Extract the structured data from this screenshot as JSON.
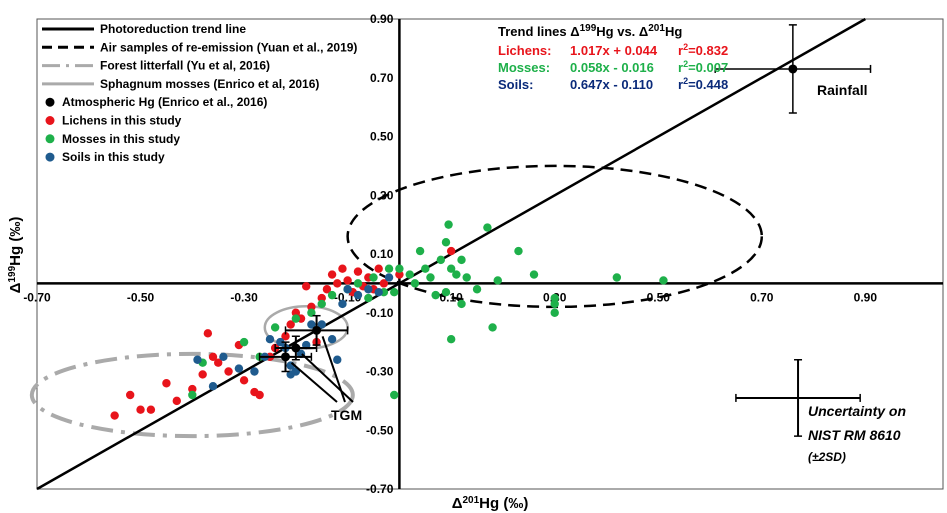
{
  "chart_data": {
    "type": "scatter",
    "xlabel": "Δ201Hg (‰)",
    "ylabel": "Δ199Hg (‰)",
    "xlim": [
      -0.7,
      1.05
    ],
    "ylim": [
      -0.7,
      0.9
    ],
    "x_ticks": [
      "-0.70",
      "-0.50",
      "-0.30",
      "-0.10",
      "0.10",
      "0.30",
      "0.50",
      "0.70",
      "0.90"
    ],
    "y_ticks": [
      "-0.70",
      "-0.50",
      "-0.30",
      "-0.10",
      "0.10",
      "0.30",
      "0.50",
      "0.70",
      "0.90"
    ],
    "legend": [
      {
        "label": "Photoreduction trend line",
        "style": "solid-black"
      },
      {
        "label": "Air samples of re-emission (Yuan et al., 2019)",
        "style": "dashed-black"
      },
      {
        "label": "Forest litterfall (Yu et al, 2016)",
        "style": "dashdot-gray"
      },
      {
        "label": "Sphagnum mosses (Enrico et al, 2016)",
        "style": "solid-gray"
      },
      {
        "label": "Atmospheric Hg (Enrico et al., 2016)",
        "style": "black-dot"
      },
      {
        "label": "Lichens in this study",
        "style": "red-dot"
      },
      {
        "label": "Mosses in this study",
        "style": "green-dot"
      },
      {
        "label": "Soils in this study",
        "style": "blue-dot"
      }
    ],
    "trend_box": {
      "title": "Trend lines Δ199Hg vs. Δ201Hg",
      "rows": [
        {
          "label": "Lichens:",
          "equation": "1.017x + 0.044",
          "r2": "r2=0.832",
          "color": "#e8141b"
        },
        {
          "label": "Mosses:",
          "equation": "0.058x - 0.016",
          "r2": "r2=0.007",
          "color": "#1eb04a"
        },
        {
          "label": "Soils:",
          "equation": "0.647x - 0.110",
          "r2": "r2=0.448",
          "color": "#0a2a7a"
        }
      ]
    },
    "annotations": {
      "rainfall": "Rainfall",
      "tgm": "TGM",
      "uncertainty_line1": "Uncertainty on",
      "uncertainty_line2": "NIST RM 8610",
      "uncertainty_line3": "(±2SD)"
    },
    "photoreduction_line": {
      "slope": 1.0,
      "intercept": 0.0
    },
    "air_reemission_ellipse": {
      "cx": 0.3,
      "cy": 0.16,
      "rx": 0.4,
      "ry": 0.4
    },
    "litterfall_ellipse": {
      "cx": -0.4,
      "cy": -0.38,
      "rx": 0.31,
      "ry": 0.14
    },
    "sphagnum_ellipse": {
      "cx": -0.18,
      "cy": -0.15,
      "rx": 0.08,
      "ry": 0.09
    },
    "rainfall_point": {
      "x": 0.76,
      "y": 0.73,
      "x_err": 0.15,
      "y_err": 0.15
    },
    "uncertainty_cross": {
      "x": 0.77,
      "y": -0.39,
      "x_err": 0.12,
      "y_err": 0.13
    },
    "atmospheric_points": [
      {
        "x": -0.22,
        "y": -0.25,
        "x_err": 0.05,
        "y_err": 0.05
      },
      {
        "x": -0.16,
        "y": -0.16,
        "x_err": 0.06,
        "y_err": 0.05
      },
      {
        "x": -0.2,
        "y": -0.22,
        "x_err": 0.04,
        "y_err": 0.04
      }
    ],
    "series": [
      {
        "name": "Lichens in this study",
        "color": "#e8141b",
        "points": [
          [
            -0.55,
            -0.45
          ],
          [
            -0.52,
            -0.38
          ],
          [
            -0.5,
            -0.43
          ],
          [
            -0.48,
            -0.43
          ],
          [
            -0.45,
            -0.34
          ],
          [
            -0.43,
            -0.4
          ],
          [
            -0.4,
            -0.36
          ],
          [
            -0.38,
            -0.31
          ],
          [
            -0.36,
            -0.25
          ],
          [
            -0.37,
            -0.17
          ],
          [
            -0.35,
            -0.27
          ],
          [
            -0.33,
            -0.3
          ],
          [
            -0.31,
            -0.21
          ],
          [
            -0.3,
            -0.33
          ],
          [
            -0.28,
            -0.37
          ],
          [
            -0.27,
            -0.38
          ],
          [
            -0.25,
            -0.25
          ],
          [
            -0.24,
            -0.22
          ],
          [
            -0.22,
            -0.18
          ],
          [
            -0.21,
            -0.14
          ],
          [
            -0.2,
            -0.1
          ],
          [
            -0.19,
            -0.12
          ],
          [
            -0.17,
            -0.08
          ],
          [
            -0.15,
            -0.05
          ],
          [
            -0.14,
            -0.02
          ],
          [
            -0.13,
            0.03
          ],
          [
            -0.12,
            0.0
          ],
          [
            -0.11,
            0.05
          ],
          [
            -0.1,
            0.01
          ],
          [
            -0.09,
            -0.03
          ],
          [
            -0.08,
            0.04
          ],
          [
            -0.07,
            -0.01
          ],
          [
            -0.06,
            0.02
          ],
          [
            -0.05,
            -0.02
          ],
          [
            -0.04,
            0.05
          ],
          [
            -0.03,
            0.0
          ],
          [
            0.0,
            0.03
          ],
          [
            0.1,
            0.11
          ],
          [
            -0.18,
            -0.01
          ],
          [
            -0.16,
            -0.2
          ]
        ]
      },
      {
        "name": "Mosses in this study",
        "color": "#1eb04a",
        "points": [
          [
            -0.4,
            -0.38
          ],
          [
            -0.38,
            -0.27
          ],
          [
            -0.3,
            -0.2
          ],
          [
            -0.27,
            -0.25
          ],
          [
            -0.24,
            -0.15
          ],
          [
            -0.2,
            -0.12
          ],
          [
            -0.17,
            -0.1
          ],
          [
            -0.15,
            -0.07
          ],
          [
            -0.13,
            -0.04
          ],
          [
            -0.1,
            -0.02
          ],
          [
            -0.08,
            0.0
          ],
          [
            -0.06,
            -0.05
          ],
          [
            -0.05,
            0.02
          ],
          [
            -0.03,
            -0.03
          ],
          [
            -0.02,
            0.05
          ],
          [
            -0.01,
            -0.03
          ],
          [
            0.0,
            0.05
          ],
          [
            0.02,
            0.03
          ],
          [
            0.03,
            0.0
          ],
          [
            0.04,
            0.11
          ],
          [
            0.05,
            0.05
          ],
          [
            0.06,
            0.02
          ],
          [
            0.07,
            -0.04
          ],
          [
            0.08,
            0.08
          ],
          [
            0.09,
            0.14
          ],
          [
            0.095,
            0.2
          ],
          [
            0.1,
            0.05
          ],
          [
            0.11,
            0.03
          ],
          [
            0.12,
            -0.07
          ],
          [
            0.13,
            0.02
          ],
          [
            0.15,
            -0.02
          ],
          [
            0.17,
            0.19
          ],
          [
            0.18,
            -0.15
          ],
          [
            0.19,
            0.01
          ],
          [
            0.23,
            0.11
          ],
          [
            0.26,
            0.03
          ],
          [
            0.3,
            -0.05
          ],
          [
            0.3,
            -0.07
          ],
          [
            0.3,
            -0.1
          ],
          [
            0.42,
            0.02
          ],
          [
            0.51,
            0.01
          ],
          [
            0.1,
            -0.19
          ],
          [
            0.09,
            -0.03
          ],
          [
            -0.01,
            -0.38
          ],
          [
            0.12,
            0.08
          ]
        ]
      },
      {
        "name": "Soils in this study",
        "color": "#1f5b8e",
        "points": [
          [
            -0.39,
            -0.26
          ],
          [
            -0.36,
            -0.35
          ],
          [
            -0.34,
            -0.25
          ],
          [
            -0.31,
            -0.29
          ],
          [
            -0.28,
            -0.3
          ],
          [
            -0.26,
            -0.25
          ],
          [
            -0.25,
            -0.19
          ],
          [
            -0.23,
            -0.2
          ],
          [
            -0.22,
            -0.22
          ],
          [
            -0.21,
            -0.31
          ],
          [
            -0.2,
            -0.3
          ],
          [
            -0.19,
            -0.24
          ],
          [
            -0.18,
            -0.21
          ],
          [
            -0.17,
            -0.14
          ],
          [
            -0.15,
            -0.14
          ],
          [
            -0.13,
            -0.19
          ],
          [
            -0.11,
            -0.07
          ],
          [
            -0.1,
            -0.02
          ],
          [
            -0.08,
            -0.04
          ],
          [
            -0.06,
            -0.02
          ],
          [
            -0.04,
            -0.03
          ],
          [
            -0.02,
            0.02
          ],
          [
            -0.12,
            -0.26
          ],
          [
            -0.21,
            -0.28
          ]
        ]
      }
    ]
  }
}
